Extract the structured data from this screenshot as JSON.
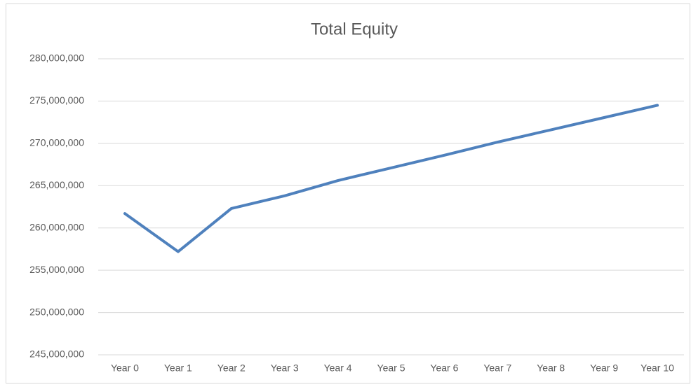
{
  "chart_data": {
    "type": "line",
    "title": "Total Equity",
    "categories": [
      "Year 0",
      "Year 1",
      "Year 2",
      "Year 3",
      "Year 4",
      "Year 5",
      "Year 6",
      "Year 7",
      "Year 8",
      "Year 9",
      "Year 10"
    ],
    "series": [
      {
        "name": "Total Equity",
        "color": "#4f81bd",
        "values": [
          261700000,
          257200000,
          262300000,
          263800000,
          265600000,
          267100000,
          268600000,
          270150000,
          271600000,
          273050000,
          274500000
        ]
      }
    ],
    "ylim": [
      245000000,
      280000000
    ],
    "yticks": [
      {
        "value": 245000000,
        "label": "245,000,000"
      },
      {
        "value": 250000000,
        "label": "250,000,000"
      },
      {
        "value": 255000000,
        "label": "255,000,000"
      },
      {
        "value": 260000000,
        "label": "260,000,000"
      },
      {
        "value": 265000000,
        "label": "265,000,000"
      },
      {
        "value": 270000000,
        "label": "270,000,000"
      },
      {
        "value": 275000000,
        "label": "275,000,000"
      },
      {
        "value": 280000000,
        "label": "280,000,000"
      }
    ],
    "grid": true
  }
}
